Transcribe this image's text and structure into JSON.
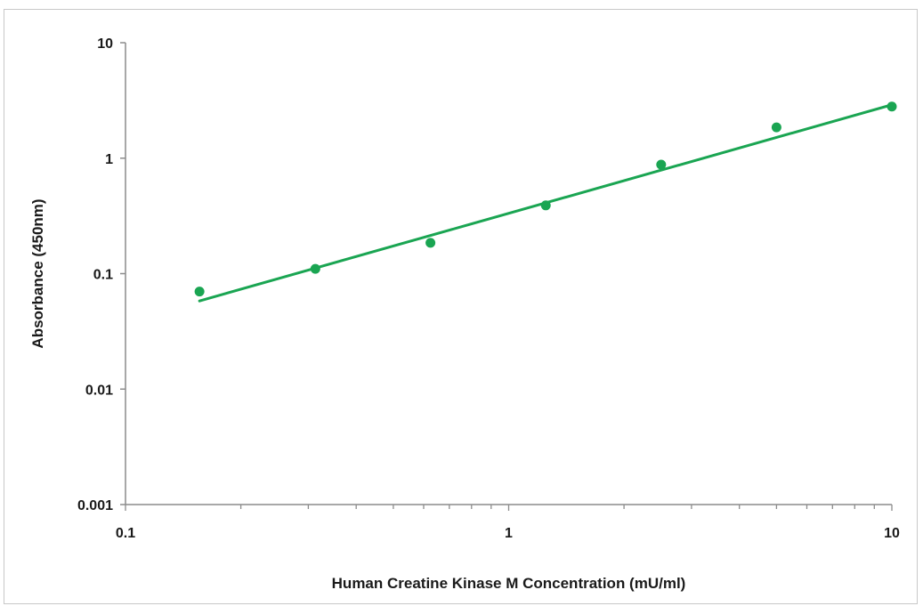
{
  "chart_data": {
    "type": "scatter",
    "title": "",
    "xlabel": "Human Creatine Kinase M Concentration (mU/ml)",
    "ylabel": "Absorbance (450nm)",
    "x_scale": "log",
    "y_scale": "log",
    "xlim": [
      0.1,
      10
    ],
    "ylim": [
      0.001,
      10
    ],
    "x_ticks": [
      0.1,
      1,
      10
    ],
    "x_tick_labels": [
      "0.1",
      "1",
      "10"
    ],
    "y_ticks": [
      0.001,
      0.01,
      0.1,
      1,
      10
    ],
    "y_tick_labels": [
      "0.001",
      "0.01",
      "0.1",
      "1",
      "10"
    ],
    "grid": false,
    "legend": "none",
    "series": [
      {
        "type": "scatter",
        "color": "#1aa552",
        "x": [
          0.156,
          0.313,
          0.625,
          1.25,
          2.5,
          5,
          10
        ],
        "y": [
          0.07,
          0.11,
          0.185,
          0.39,
          0.88,
          1.85,
          2.8
        ]
      },
      {
        "type": "trendline",
        "color": "#1aa552",
        "x": [
          0.156,
          10
        ],
        "y": [
          0.058,
          2.9
        ]
      }
    ]
  }
}
